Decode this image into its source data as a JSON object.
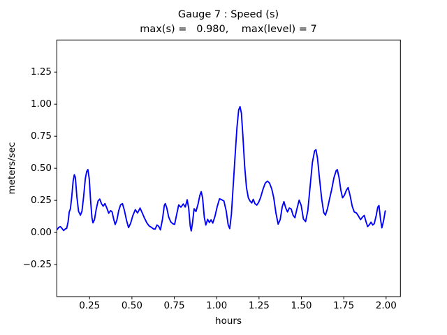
{
  "chart_data": {
    "type": "line",
    "title": "Gauge 7 : Speed (s)",
    "subtitle": "max(s) =   0.980,    max(level) = 7",
    "max_s": 0.98,
    "max_level": 7,
    "xlabel": "hours",
    "ylabel": "meters/sec",
    "xlim": [
      0.0565,
      2.0845
    ],
    "ylim": [
      -0.5,
      1.5
    ],
    "xticks": [
      0.25,
      0.5,
      0.75,
      1.0,
      1.25,
      1.5,
      1.75,
      2.0
    ],
    "xtick_labels": [
      "0.25",
      "0.50",
      "0.75",
      "1.00",
      "1.25",
      "1.50",
      "1.75",
      "2.00"
    ],
    "yticks": [
      -0.25,
      0.0,
      0.25,
      0.5,
      0.75,
      1.0,
      1.25
    ],
    "ytick_labels": [
      "−0.25",
      "0.00",
      "0.25",
      "0.50",
      "0.75",
      "1.00",
      "1.25"
    ],
    "grid": false,
    "legend": null,
    "line_color": "#0000ff",
    "series": [
      {
        "name": "speed",
        "points": [
          [
            0.058,
            0.022
          ],
          [
            0.068,
            0.04
          ],
          [
            0.078,
            0.045
          ],
          [
            0.088,
            0.03
          ],
          [
            0.097,
            0.015
          ],
          [
            0.107,
            0.028
          ],
          [
            0.115,
            0.032
          ],
          [
            0.123,
            0.08
          ],
          [
            0.13,
            0.16
          ],
          [
            0.137,
            0.185
          ],
          [
            0.145,
            0.28
          ],
          [
            0.153,
            0.4
          ],
          [
            0.16,
            0.45
          ],
          [
            0.166,
            0.43
          ],
          [
            0.175,
            0.28
          ],
          [
            0.185,
            0.165
          ],
          [
            0.196,
            0.135
          ],
          [
            0.205,
            0.165
          ],
          [
            0.215,
            0.28
          ],
          [
            0.225,
            0.42
          ],
          [
            0.233,
            0.475
          ],
          [
            0.24,
            0.49
          ],
          [
            0.248,
            0.42
          ],
          [
            0.256,
            0.25
          ],
          [
            0.264,
            0.115
          ],
          [
            0.27,
            0.075
          ],
          [
            0.279,
            0.1
          ],
          [
            0.289,
            0.18
          ],
          [
            0.3,
            0.245
          ],
          [
            0.31,
            0.26
          ],
          [
            0.32,
            0.225
          ],
          [
            0.33,
            0.205
          ],
          [
            0.341,
            0.225
          ],
          [
            0.352,
            0.19
          ],
          [
            0.363,
            0.15
          ],
          [
            0.374,
            0.17
          ],
          [
            0.383,
            0.16
          ],
          [
            0.393,
            0.1
          ],
          [
            0.401,
            0.062
          ],
          [
            0.411,
            0.095
          ],
          [
            0.422,
            0.17
          ],
          [
            0.433,
            0.215
          ],
          [
            0.444,
            0.225
          ],
          [
            0.455,
            0.175
          ],
          [
            0.468,
            0.095
          ],
          [
            0.48,
            0.038
          ],
          [
            0.492,
            0.07
          ],
          [
            0.505,
            0.13
          ],
          [
            0.52,
            0.178
          ],
          [
            0.533,
            0.152
          ],
          [
            0.548,
            0.19
          ],
          [
            0.56,
            0.155
          ],
          [
            0.573,
            0.115
          ],
          [
            0.588,
            0.075
          ],
          [
            0.602,
            0.05
          ],
          [
            0.615,
            0.04
          ],
          [
            0.627,
            0.028
          ],
          [
            0.637,
            0.026
          ],
          [
            0.648,
            0.058
          ],
          [
            0.658,
            0.048
          ],
          [
            0.668,
            0.02
          ],
          [
            0.68,
            0.1
          ],
          [
            0.691,
            0.21
          ],
          [
            0.697,
            0.225
          ],
          [
            0.706,
            0.19
          ],
          [
            0.717,
            0.12
          ],
          [
            0.729,
            0.083
          ],
          [
            0.741,
            0.068
          ],
          [
            0.752,
            0.063
          ],
          [
            0.764,
            0.14
          ],
          [
            0.776,
            0.215
          ],
          [
            0.789,
            0.197
          ],
          [
            0.803,
            0.222
          ],
          [
            0.815,
            0.198
          ],
          [
            0.826,
            0.255
          ],
          [
            0.835,
            0.19
          ],
          [
            0.844,
            0.05
          ],
          [
            0.85,
            0.012
          ],
          [
            0.857,
            0.07
          ],
          [
            0.867,
            0.185
          ],
          [
            0.878,
            0.163
          ],
          [
            0.89,
            0.22
          ],
          [
            0.901,
            0.29
          ],
          [
            0.909,
            0.318
          ],
          [
            0.917,
            0.27
          ],
          [
            0.927,
            0.12
          ],
          [
            0.936,
            0.058
          ],
          [
            0.947,
            0.102
          ],
          [
            0.957,
            0.078
          ],
          [
            0.967,
            0.098
          ],
          [
            0.977,
            0.073
          ],
          [
            0.99,
            0.125
          ],
          [
            1.003,
            0.2
          ],
          [
            1.017,
            0.262
          ],
          [
            1.03,
            0.255
          ],
          [
            1.043,
            0.245
          ],
          [
            1.056,
            0.17
          ],
          [
            1.068,
            0.06
          ],
          [
            1.077,
            0.03
          ],
          [
            1.087,
            0.14
          ],
          [
            1.097,
            0.35
          ],
          [
            1.108,
            0.58
          ],
          [
            1.12,
            0.82
          ],
          [
            1.13,
            0.955
          ],
          [
            1.138,
            0.98
          ],
          [
            1.146,
            0.93
          ],
          [
            1.155,
            0.75
          ],
          [
            1.165,
            0.52
          ],
          [
            1.176,
            0.35
          ],
          [
            1.187,
            0.27
          ],
          [
            1.197,
            0.245
          ],
          [
            1.207,
            0.23
          ],
          [
            1.216,
            0.258
          ],
          [
            1.226,
            0.225
          ],
          [
            1.237,
            0.213
          ],
          [
            1.248,
            0.235
          ],
          [
            1.26,
            0.275
          ],
          [
            1.273,
            0.335
          ],
          [
            1.287,
            0.385
          ],
          [
            1.3,
            0.4
          ],
          [
            1.312,
            0.385
          ],
          [
            1.325,
            0.34
          ],
          [
            1.337,
            0.27
          ],
          [
            1.35,
            0.15
          ],
          [
            1.363,
            0.065
          ],
          [
            1.375,
            0.1
          ],
          [
            1.387,
            0.2
          ],
          [
            1.397,
            0.24
          ],
          [
            1.408,
            0.19
          ],
          [
            1.418,
            0.16
          ],
          [
            1.429,
            0.19
          ],
          [
            1.44,
            0.183
          ],
          [
            1.451,
            0.135
          ],
          [
            1.462,
            0.115
          ],
          [
            1.474,
            0.185
          ],
          [
            1.487,
            0.252
          ],
          [
            1.499,
            0.21
          ],
          [
            1.512,
            0.105
          ],
          [
            1.525,
            0.085
          ],
          [
            1.538,
            0.17
          ],
          [
            1.551,
            0.35
          ],
          [
            1.565,
            0.545
          ],
          [
            1.578,
            0.635
          ],
          [
            1.586,
            0.645
          ],
          [
            1.595,
            0.58
          ],
          [
            1.607,
            0.42
          ],
          [
            1.62,
            0.26
          ],
          [
            1.632,
            0.155
          ],
          [
            1.642,
            0.135
          ],
          [
            1.654,
            0.185
          ],
          [
            1.666,
            0.26
          ],
          [
            1.679,
            0.335
          ],
          [
            1.692,
            0.425
          ],
          [
            1.705,
            0.48
          ],
          [
            1.712,
            0.49
          ],
          [
            1.722,
            0.43
          ],
          [
            1.733,
            0.33
          ],
          [
            1.743,
            0.27
          ],
          [
            1.754,
            0.29
          ],
          [
            1.766,
            0.33
          ],
          [
            1.776,
            0.35
          ],
          [
            1.788,
            0.285
          ],
          [
            1.8,
            0.205
          ],
          [
            1.812,
            0.16
          ],
          [
            1.825,
            0.152
          ],
          [
            1.837,
            0.128
          ],
          [
            1.849,
            0.1
          ],
          [
            1.861,
            0.12
          ],
          [
            1.871,
            0.133
          ],
          [
            1.882,
            0.082
          ],
          [
            1.891,
            0.046
          ],
          [
            1.901,
            0.06
          ],
          [
            1.911,
            0.08
          ],
          [
            1.921,
            0.058
          ],
          [
            1.93,
            0.068
          ],
          [
            1.941,
            0.128
          ],
          [
            1.951,
            0.198
          ],
          [
            1.958,
            0.21
          ],
          [
            1.967,
            0.105
          ],
          [
            1.975,
            0.036
          ],
          [
            1.985,
            0.09
          ],
          [
            1.995,
            0.168
          ]
        ]
      }
    ]
  }
}
